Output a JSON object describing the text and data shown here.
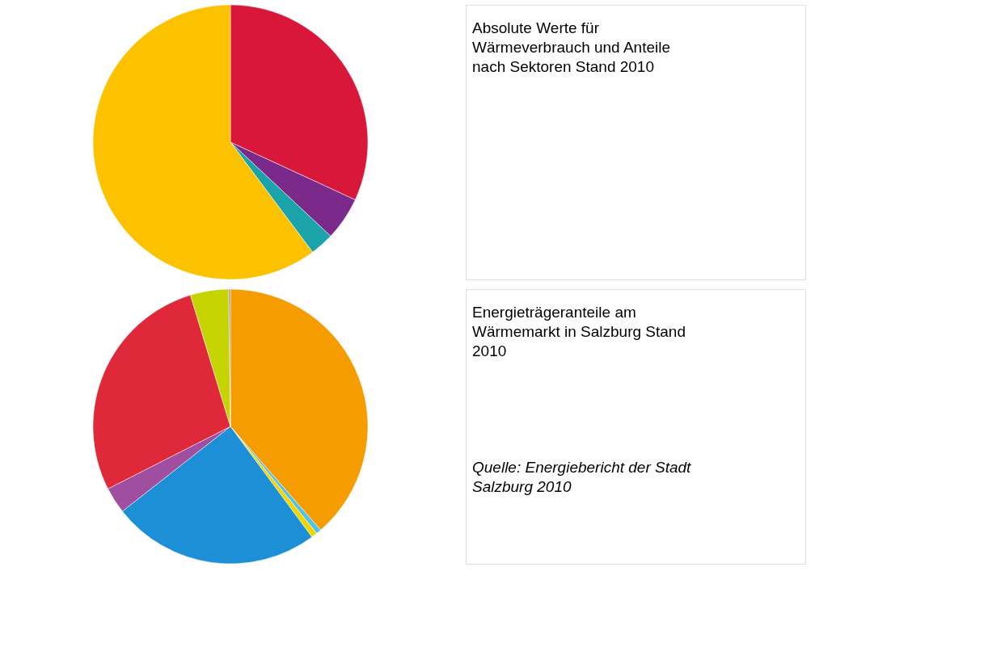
{
  "chart_data": [
    {
      "type": "pie",
      "title": "Absolute Werte für Wärmeverbrauch und Anteile nach Sektoren Stand 2010",
      "categories": [
        null,
        null,
        null,
        null
      ],
      "values": [
        31.9,
        5.1,
        2.8,
        60.2
      ],
      "colors": [
        "#d8173a",
        "#7b2a8c",
        "#1aa3a8",
        "#fcc200"
      ]
    },
    {
      "type": "pie",
      "title": "Energieträgeranteile am Wärmemarkt in Salzburg Stand 2010",
      "annotations": [
        "Quelle: Energiebericht der Stadt Salzburg 2010"
      ],
      "categories": [
        null,
        null,
        null,
        null,
        null,
        null,
        null,
        null
      ],
      "values": [
        38.6,
        0.6,
        0.7,
        24.5,
        3.1,
        27.8,
        4.5,
        0.2
      ],
      "colors": [
        "#f59c00",
        "#56c1e8",
        "#f4d500",
        "#1d8fd6",
        "#a04ea0",
        "#e0283b",
        "#c5d400",
        "#999999"
      ]
    }
  ]
}
